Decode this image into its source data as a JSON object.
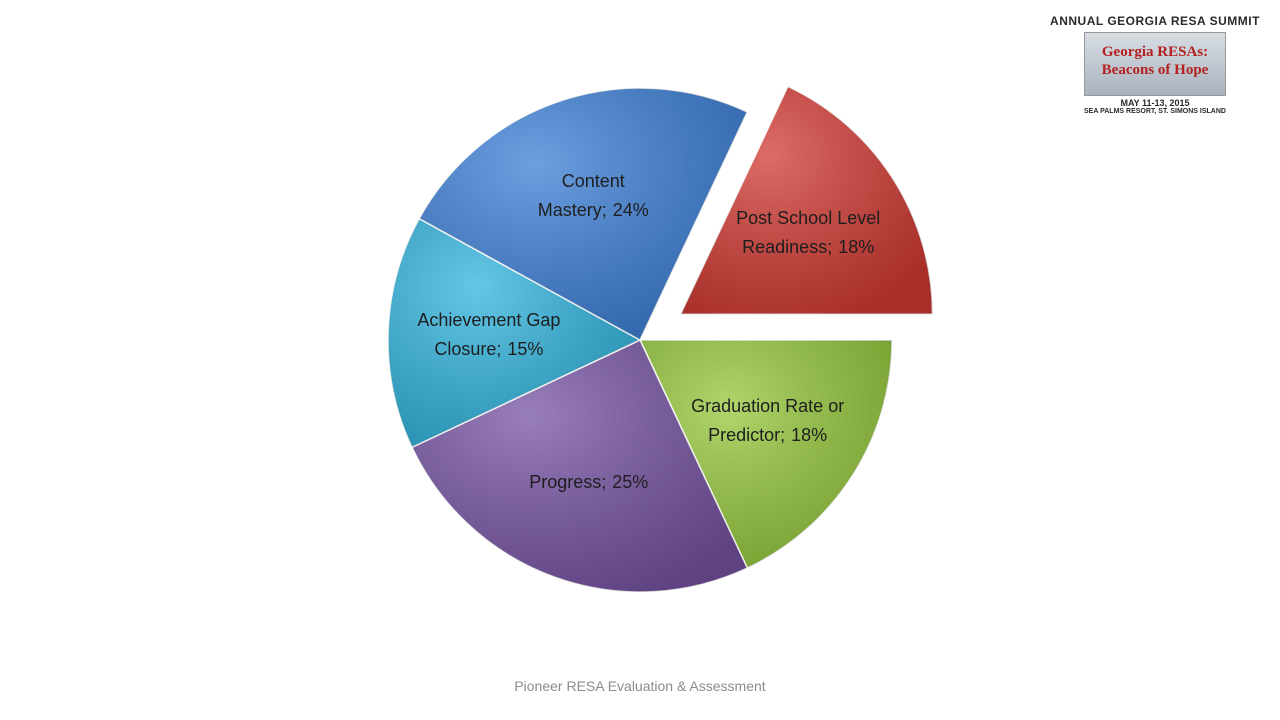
{
  "chart_data": {
    "type": "pie",
    "categories": [
      "Post School Level Readiness;",
      "Graduation Rate or Predictor;",
      "Progress;",
      "Achievement Gap Closure;",
      "Content Mastery;"
    ],
    "values": [
      18,
      18,
      25,
      15,
      24
    ],
    "value_labels": [
      "18%",
      "18%",
      "25%",
      "15%",
      "24%"
    ],
    "colors": [
      "#d23a33",
      "#95c73b",
      "#7653a3",
      "#31b4de",
      "#3c7fd6"
    ],
    "explode": [
      true,
      false,
      false,
      false,
      false
    ]
  },
  "footer": "Pioneer RESA Evaluation & Assessment",
  "logo": {
    "title": "ANNUAL GEORGIA RESA SUMMIT",
    "line1": "Georgia RESAs:",
    "line2": "Beacons of Hope",
    "date": "MAY 11-13, 2015",
    "place": "SEA PALMS RESORT, ST. SIMONS ISLAND"
  }
}
